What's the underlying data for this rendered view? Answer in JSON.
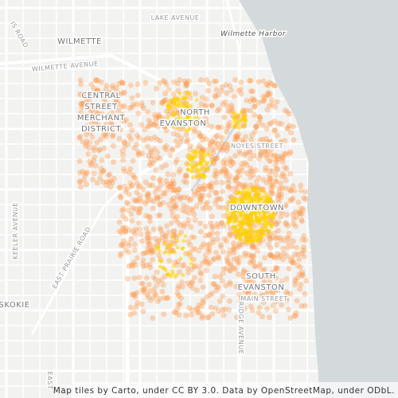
{
  "labels": [
    {
      "text": "LAKE AVENUE"
    },
    {
      "text": "WILMETTE"
    },
    {
      "text": "Wilmette Harbor"
    },
    {
      "text": "WILMETTE AVENUE"
    },
    {
      "text": "IS ROAD"
    },
    {
      "text": "CENTRAL"
    },
    {
      "text": "STREET"
    },
    {
      "text": "MERCHANT"
    },
    {
      "text": "DISTRICT"
    },
    {
      "text": "NORTH"
    },
    {
      "text": "EVANSTON"
    },
    {
      "text": "NOYES STREET"
    },
    {
      "text": "DOWNTOWN"
    },
    {
      "text": "SOUTH"
    },
    {
      "text": "EVANSTON"
    },
    {
      "text": "MAIN STREET"
    },
    {
      "text": "KEELER AVENUE"
    },
    {
      "text": "EAST PRAIRIE ROAD"
    },
    {
      "text": "SKOKIE"
    },
    {
      "text": "RIDGE AVENUE"
    },
    {
      "text": "EAST"
    }
  ],
  "attribution": "Map tiles by Carto, under CC BY 3.0. Data by OpenStreetMap, under ODbL."
}
